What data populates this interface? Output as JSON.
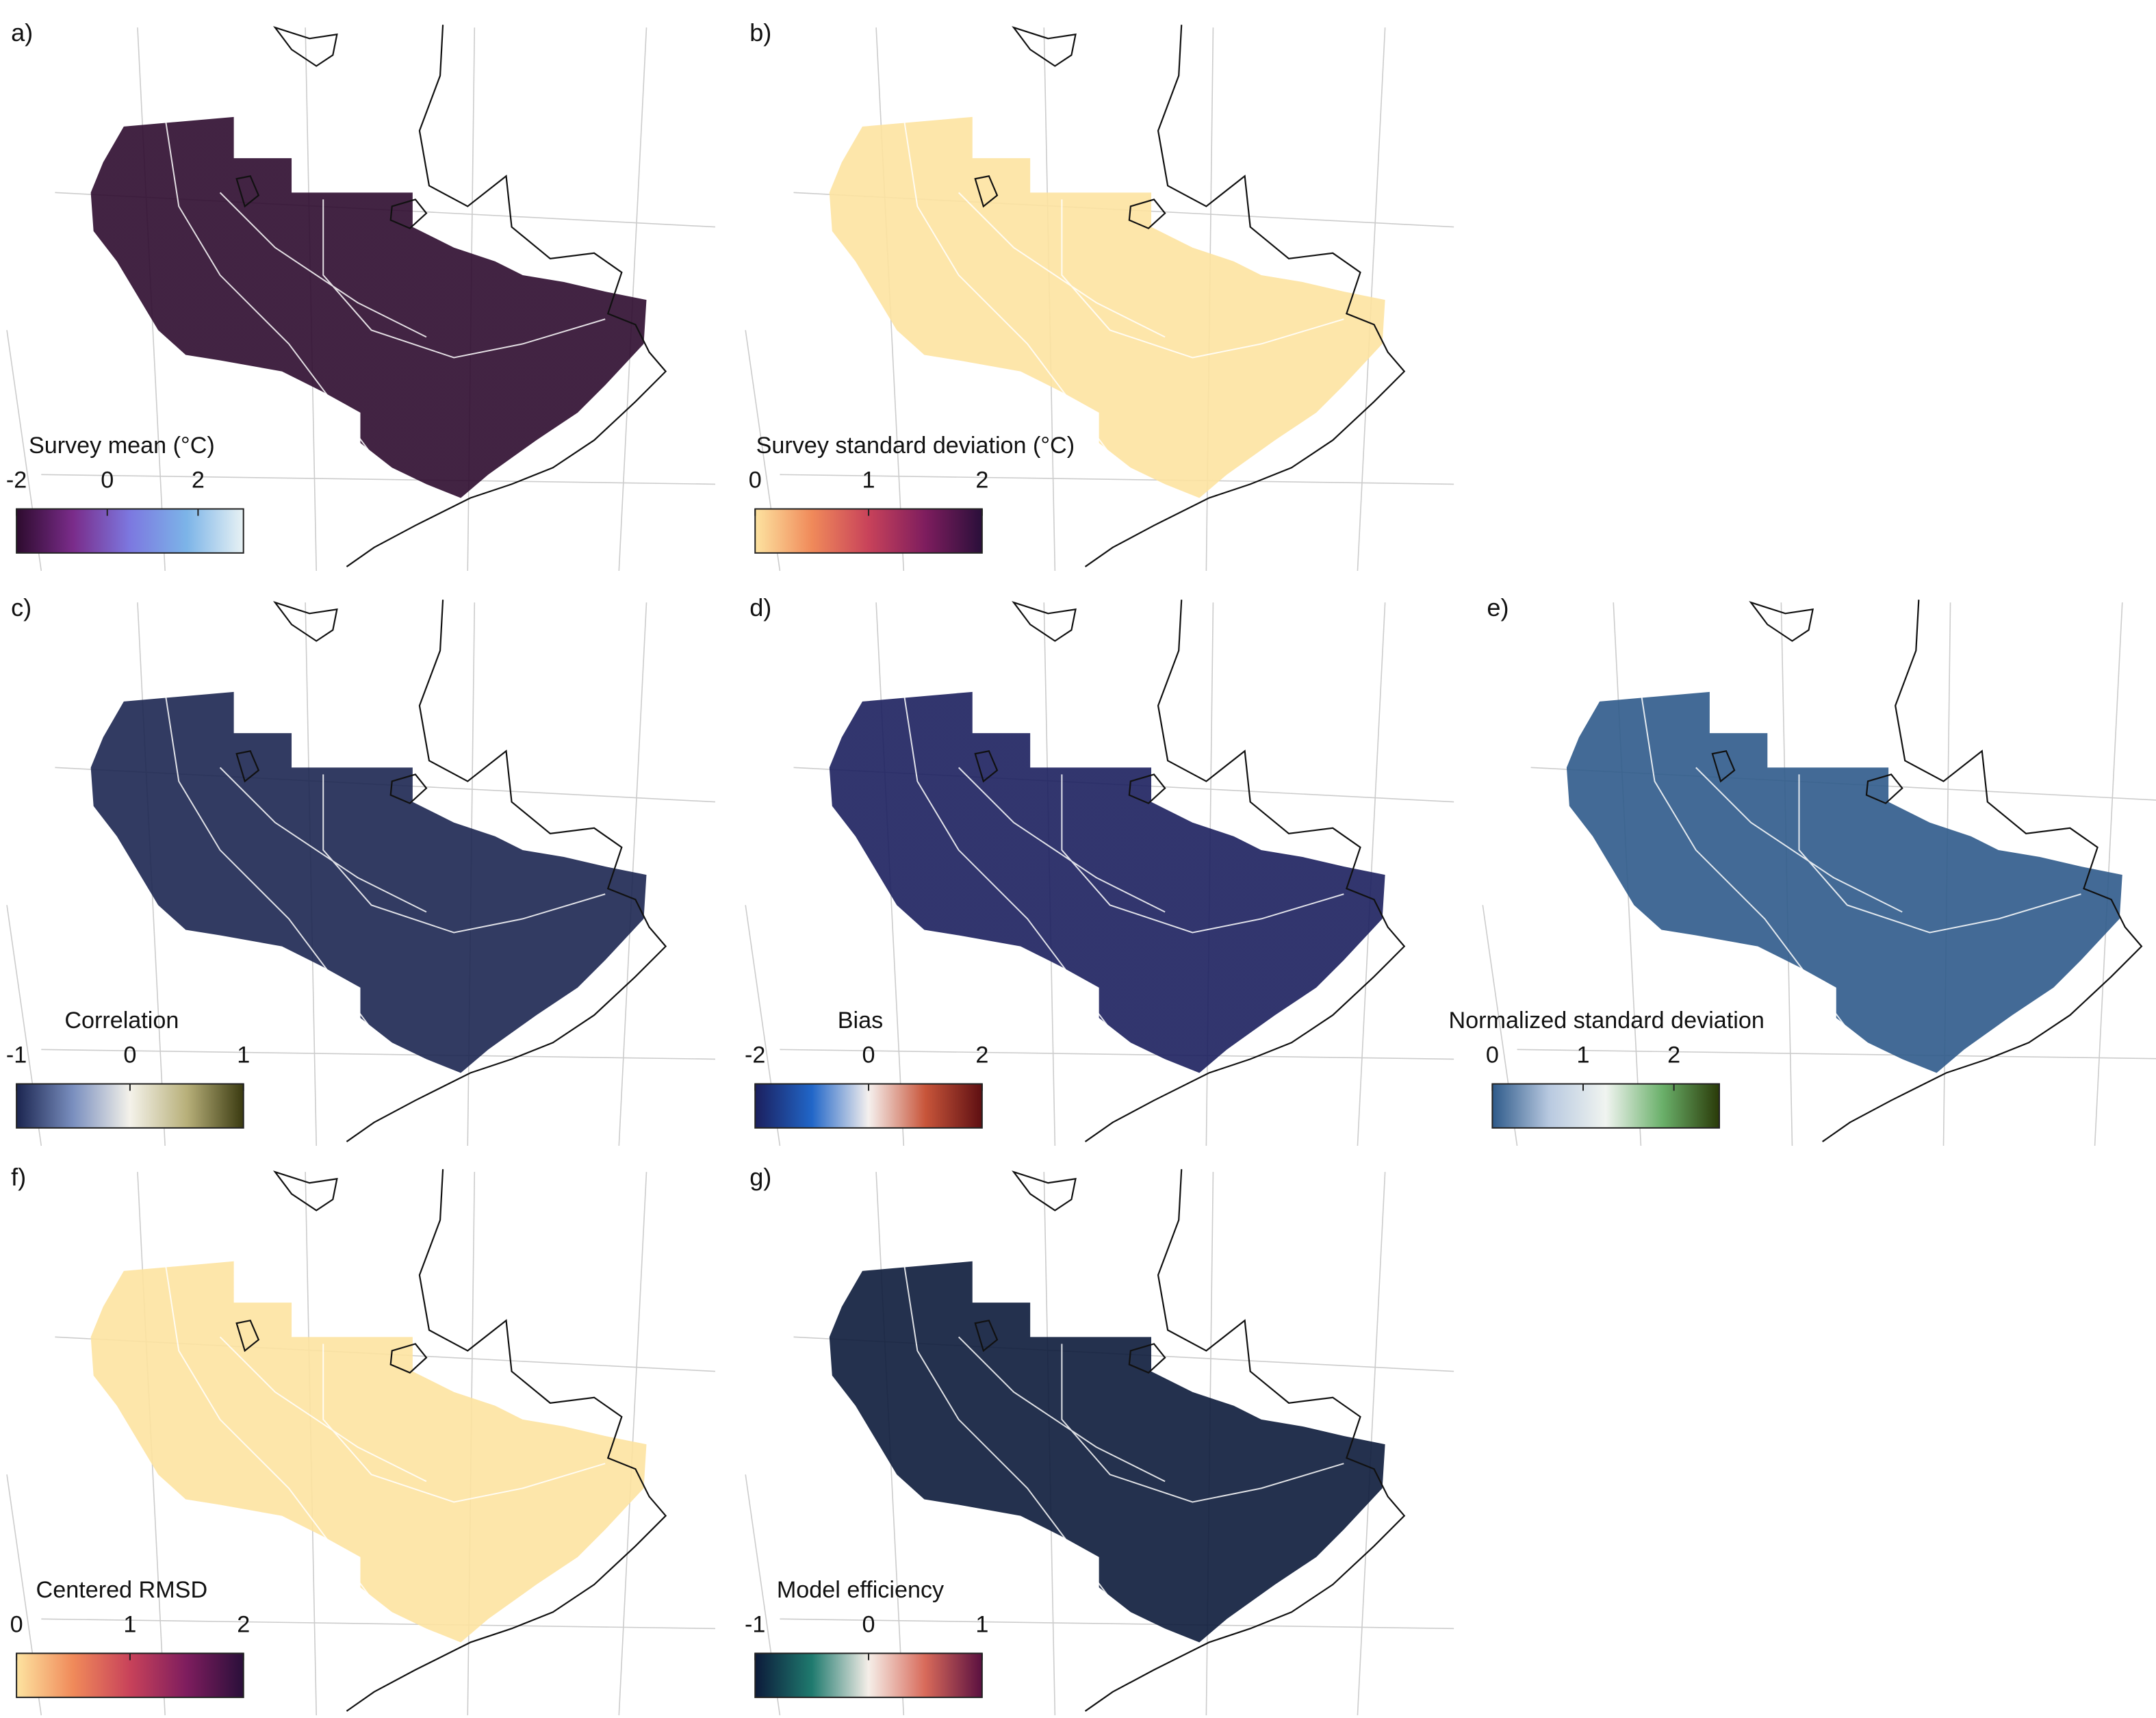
{
  "panels": [
    {
      "label": "a)",
      "colorbar": {
        "title": "Survey mean (°C)",
        "lim": [
          -2,
          3
        ],
        "ticks": [
          -2,
          0,
          2
        ],
        "colors": [
          "#2d0b2e",
          "#7a2c8a",
          "#7c78e0",
          "#7cb4e8",
          "#e8f2f4"
        ]
      }
    },
    {
      "label": "b)",
      "colorbar": {
        "title": "Survey standard deviation (°C)",
        "lim": [
          0,
          2
        ],
        "ticks": [
          0,
          1,
          2
        ],
        "colors": [
          "#fde3a0",
          "#f08a5a",
          "#c8425a",
          "#7e1d5e",
          "#2a0f3a"
        ]
      }
    },
    {
      "label": "c)",
      "colorbar": {
        "title": "Correlation",
        "lim": [
          -1,
          1
        ],
        "ticks": [
          -1,
          0,
          1
        ],
        "colors": [
          "#1b2550",
          "#7a8fbf",
          "#f4f2ea",
          "#b8b07a",
          "#3a3a10"
        ]
      }
    },
    {
      "label": "d)",
      "colorbar": {
        "title": "Bias",
        "lim": [
          -2,
          2
        ],
        "ticks": [
          -2,
          0,
          2
        ],
        "colors": [
          "#1b1f5e",
          "#2166c8",
          "#f5f0ee",
          "#c8553a",
          "#5e0f12"
        ]
      }
    },
    {
      "label": "e)",
      "colorbar": {
        "title": "Normalized standard deviation",
        "lim": [
          0,
          2.5
        ],
        "ticks": [
          0,
          1,
          2
        ],
        "colors": [
          "#2e5a8a",
          "#b8c9e0",
          "#f0f4f0",
          "#6ab06a",
          "#2a3a08"
        ]
      }
    },
    {
      "label": "f)",
      "colorbar": {
        "title": "Centered RMSD",
        "lim": [
          0,
          2
        ],
        "ticks": [
          0,
          1,
          2
        ],
        "colors": [
          "#fde3a0",
          "#f08a5a",
          "#c8425a",
          "#7e1d5e",
          "#2a0f3a"
        ]
      }
    },
    {
      "label": "g)",
      "colorbar": {
        "title": "Model efficiency",
        "lim": [
          -1,
          1
        ],
        "ticks": [
          -1,
          0,
          1
        ],
        "colors": [
          "#0c1a3a",
          "#1f7a6e",
          "#f5eee8",
          "#d86a5a",
          "#5a1040"
        ]
      }
    }
  ]
}
